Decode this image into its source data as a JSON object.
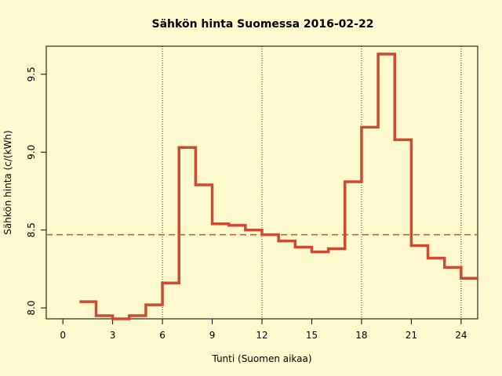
{
  "chart_data": {
    "type": "line",
    "step": true,
    "title": "Sähkön hinta Suomessa 2016-02-22",
    "xlabel": "Tunti (Suomen aikaa)",
    "ylabel": "Sähkön hinta (c/(kWh)",
    "xlim": [
      -1,
      25
    ],
    "ylim": [
      7.93,
      9.68
    ],
    "xticks": [
      "0",
      "3",
      "6",
      "9",
      "12",
      "15",
      "18",
      "21",
      "24"
    ],
    "yticks": [
      "8.0",
      "8.5",
      "9.0",
      "9.5"
    ],
    "vlines": [
      6,
      12,
      18,
      24
    ],
    "mean_line": 8.47,
    "series": [
      {
        "color": "#cd4b32",
        "x": [
          1,
          2,
          3,
          4,
          5,
          6,
          7,
          8,
          9,
          10,
          11,
          12,
          13,
          14,
          15,
          16,
          17,
          18,
          19,
          20,
          21,
          22,
          23,
          24,
          25
        ],
        "y": [
          8.04,
          7.95,
          7.93,
          7.95,
          8.02,
          8.16,
          9.03,
          8.79,
          8.54,
          8.53,
          8.5,
          8.47,
          8.43,
          8.39,
          8.36,
          8.38,
          8.81,
          9.16,
          9.63,
          9.08,
          8.4,
          8.32,
          8.26,
          8.19,
          8.19
        ]
      }
    ],
    "mean_color": "#cd4b32",
    "grid": false
  }
}
